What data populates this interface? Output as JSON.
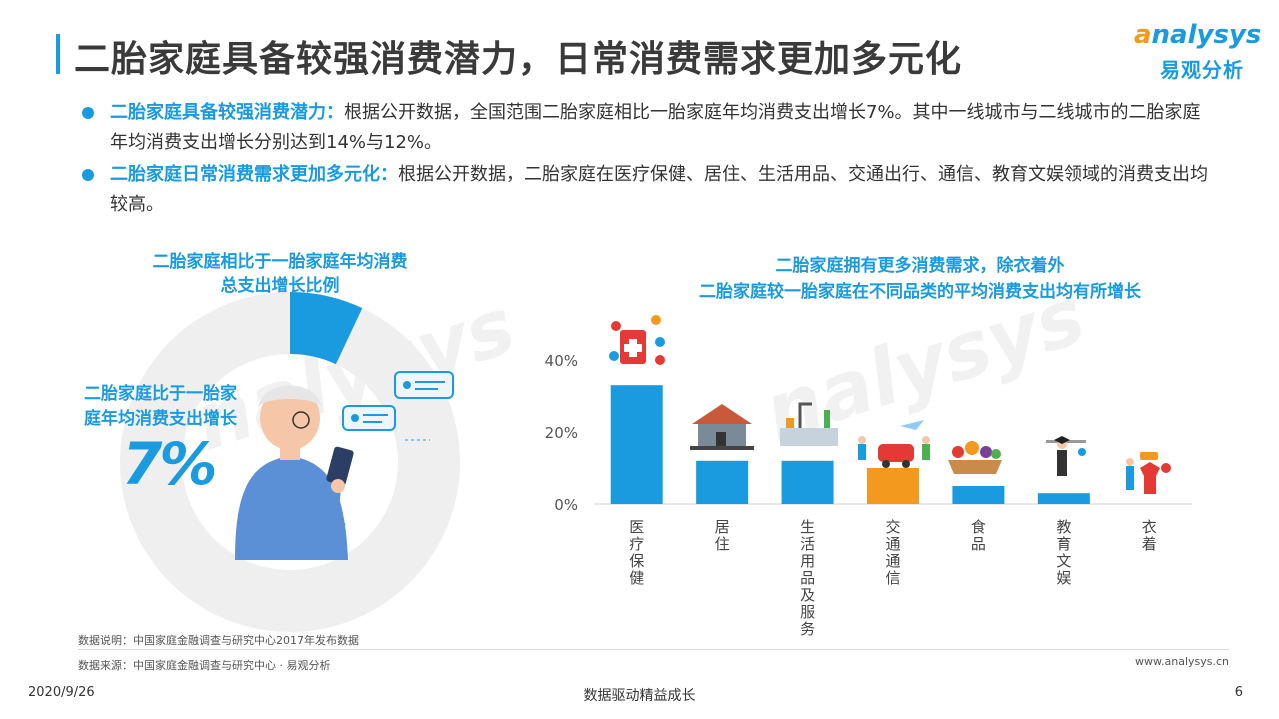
{
  "page": {
    "title": "二胎家庭具备较强消费潜力，日常消费需求更加多元化",
    "page_number": "6",
    "date": "2020/9/26",
    "footer_center": "数据驱动精益成长",
    "website": "www.analysys.cn",
    "note_data": "数据说明：中国家庭金融调查与研究中心2017年发布数据",
    "note_source": "数据来源：中国家庭金融调查与研究中心 · 易观分析"
  },
  "logo": {
    "en_o": "a",
    "en_rest": "nalysys",
    "cn": "易观分析"
  },
  "bullets": [
    {
      "lead": "二胎家庭具备较强消费潜力：",
      "text": "根据公开数据，全国范围二胎家庭相比一胎家庭年均消费支出增长7%。其中一线城市与二线城市的二胎家庭年均消费支出增长分别达到14%与12%。"
    },
    {
      "lead": "二胎家庭日常消费需求更加多元化：",
      "text": "根据公开数据，二胎家庭在医疗保健、居住、生活用品、交通出行、通信、教育文娱领域的消费支出均较高。"
    }
  ],
  "colors": {
    "accent": "#1a9be0",
    "highlight": "#f39a1e",
    "donut_rest": "#efefef"
  },
  "chart_data": [
    {
      "type": "pie",
      "title_line1": "二胎家庭相比于一胎家庭年均消费",
      "title_line2": "总支出增长比例",
      "label_line1": "二胎家庭比于一胎家",
      "label_line2": "庭年均消费支出增长",
      "value_label": "7%",
      "values": [
        7,
        93
      ]
    },
    {
      "type": "bar",
      "title_line1": "二胎家庭拥有更多消费需求，除衣着外",
      "title_line2": "二胎家庭较一胎家庭在不同品类的平均消费支出均有所增长",
      "categories": [
        "医疗保健",
        "居住",
        "生活用品及服务",
        "交通通信",
        "食品",
        "教育文娱",
        "衣着"
      ],
      "values": [
        33,
        12,
        12,
        10,
        5,
        3,
        0
      ],
      "highlight_index": 3,
      "yticks": [
        "0%",
        "20%",
        "40%"
      ],
      "ytick_values": [
        0,
        20,
        40
      ],
      "ylim": [
        0,
        40
      ],
      "grid": false
    }
  ]
}
